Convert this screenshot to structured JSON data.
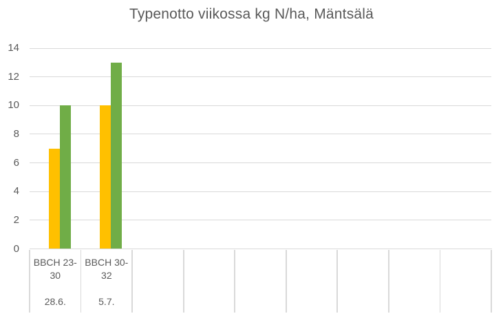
{
  "title": "Typenotto viikossa kg N/ha, Mäntsälä",
  "colors": {
    "series_yellow": "#FFC000",
    "series_green": "#70AD47",
    "gridline": "#D9D9D9",
    "axis_line": "#D9D9D9",
    "text": "#595959",
    "background": "#FFFFFF"
  },
  "chart_data": {
    "type": "bar",
    "title": "Typenotto viikossa kg N/ha, Mäntsälä",
    "categories": [
      "BBCH 23-30 28.6.",
      "BBCH 30-32 5.7."
    ],
    "category_labels": [
      {
        "stage": "BBCH 23-30",
        "stage_line1": "BBCH 23-",
        "stage_line2": "30",
        "date": "28.6."
      },
      {
        "stage": "BBCH 30-32",
        "stage_line1": "BBCH 30-",
        "stage_line2": "32",
        "date": "5.7."
      }
    ],
    "series": [
      {
        "name": "series-yellow",
        "color": "#FFC000",
        "values": [
          7,
          10
        ]
      },
      {
        "name": "series-green",
        "color": "#70AD47",
        "values": [
          10,
          13
        ]
      }
    ],
    "xlabel": "",
    "ylabel": "",
    "ylim": [
      0,
      14
    ],
    "yticks": [
      0,
      2,
      4,
      6,
      8,
      10,
      12,
      14
    ],
    "grid": true,
    "legend": "none",
    "total_category_slots": 9
  }
}
